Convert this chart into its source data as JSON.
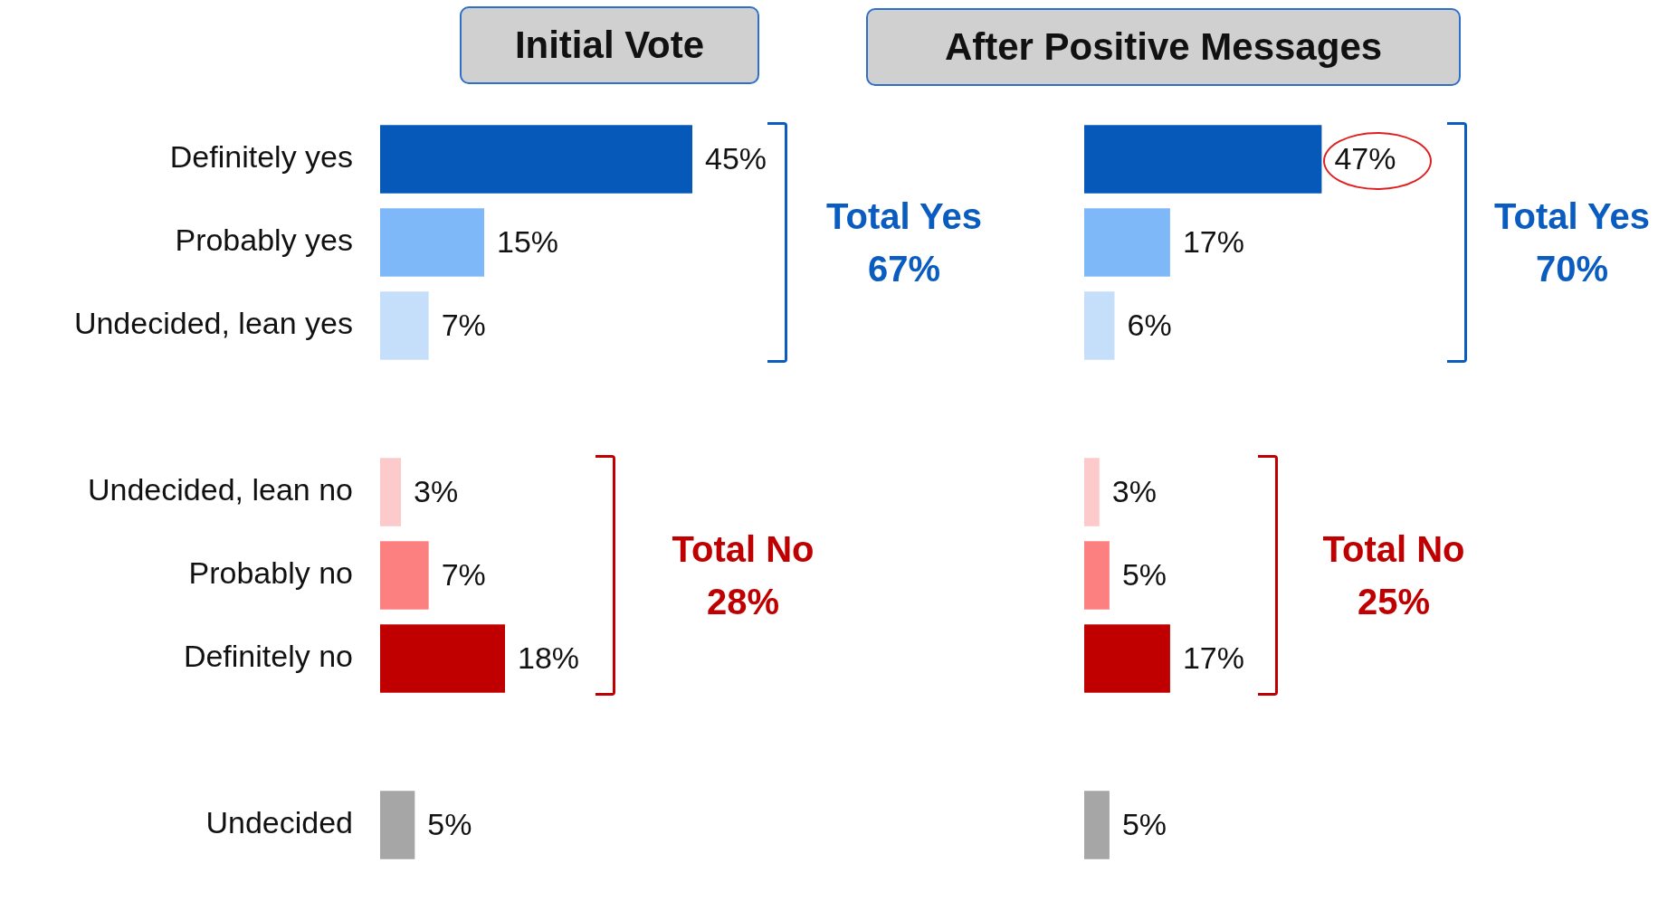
{
  "chart_data": [
    {
      "type": "bar",
      "orientation": "horizontal",
      "title": "Initial Vote",
      "categories": [
        "Definitely yes",
        "Probably yes",
        "Undecided, lean yes",
        null,
        "Undecided, lean no",
        "Probably no",
        "Definitely no",
        null,
        "Undecided"
      ],
      "values": [
        45,
        15,
        7,
        null,
        3,
        7,
        18,
        null,
        5
      ],
      "value_labels": [
        "45%",
        "15%",
        "7%",
        null,
        "3%",
        "7%",
        "18%",
        null,
        "5%"
      ],
      "colors": [
        "#0659b8",
        "#7fb8f8",
        "#c5dffb",
        "#ffffff",
        "#fccaca",
        "#fd8080",
        "#c00000",
        "#ffffff",
        "#a6a6a6"
      ],
      "tick_labels": "y",
      "legend": false,
      "annotations": [
        "Total Yes\n67%",
        "Total No\n28%"
      ]
    },
    {
      "type": "bar",
      "orientation": "horizontal",
      "title": "After Positive Messages",
      "categories": [
        null,
        null,
        null,
        null,
        null,
        null,
        null,
        null,
        null
      ],
      "values": [
        47,
        17,
        6,
        null,
        3,
        5,
        17,
        null,
        5
      ],
      "value_labels": [
        "47%",
        "17%",
        "6%",
        null,
        "3%",
        "5%",
        "17%",
        null,
        "5%"
      ],
      "colors": [
        "#0659b8",
        "#7fb8f8",
        "#c5dffb",
        "#ffffff",
        "#fccaca",
        "#fd8080",
        "#c00000",
        "#ffffff",
        "#a6a6a6"
      ],
      "tick_labels": false,
      "legend": false,
      "annotations": [
        "Total Yes\n70%",
        "Total No\n25%"
      ]
    }
  ]
}
